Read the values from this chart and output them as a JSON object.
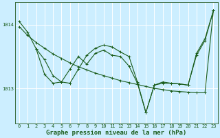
{
  "title": "Graphe pression niveau de la mer (hPa)",
  "bg_color": "#cceeff",
  "grid_color": "#ffffff",
  "line_color": "#1a5c1a",
  "xlim": [
    -0.5,
    23.5
  ],
  "ylim": [
    1012.45,
    1014.35
  ],
  "yticks": [
    1013,
    1014
  ],
  "xticks": [
    0,
    1,
    2,
    3,
    4,
    5,
    6,
    7,
    8,
    9,
    10,
    11,
    12,
    13,
    14,
    15,
    16,
    17,
    18,
    19,
    20,
    21,
    22,
    23
  ],
  "s1x": [
    0,
    1,
    2,
    3,
    4,
    5,
    6,
    7,
    8,
    9,
    10,
    11,
    12,
    13,
    14,
    15,
    16,
    17,
    18,
    19,
    20,
    21,
    22,
    23
  ],
  "s1y": [
    1013.97,
    1013.83,
    1013.72,
    1013.63,
    1013.54,
    1013.47,
    1013.4,
    1013.34,
    1013.29,
    1013.24,
    1013.2,
    1013.16,
    1013.12,
    1013.09,
    1013.06,
    1013.03,
    1013.0,
    1012.98,
    1012.96,
    1012.95,
    1012.94,
    1012.93,
    1012.93,
    1014.22
  ],
  "s2x": [
    0,
    1,
    2,
    3,
    4,
    5,
    6,
    7,
    8,
    9,
    10,
    11,
    12,
    13,
    14,
    15,
    16,
    17,
    18,
    19,
    20,
    21,
    22,
    23
  ],
  "s2y": [
    1014.05,
    1013.88,
    1013.62,
    1013.45,
    1013.2,
    1013.1,
    1013.08,
    1013.3,
    1013.52,
    1013.63,
    1013.68,
    1013.65,
    1013.57,
    1013.5,
    1013.1,
    1012.62,
    1013.05,
    1013.1,
    1013.08,
    1013.07,
    1013.05,
    1013.55,
    1013.78,
    1014.22
  ],
  "s3x": [
    2,
    3,
    4,
    5,
    6,
    7,
    8,
    9,
    10,
    11,
    12,
    13,
    14,
    15,
    16,
    17,
    18,
    19,
    20,
    21,
    22,
    23
  ],
  "s3y": [
    1013.62,
    1013.22,
    1013.08,
    1013.1,
    1013.3,
    1013.5,
    1013.38,
    1013.55,
    1013.6,
    1013.52,
    1013.5,
    1013.35,
    1013.08,
    1012.62,
    1013.05,
    1013.08,
    1013.08,
    1013.07,
    1013.05,
    1013.52,
    1013.75,
    1014.22
  ],
  "title_color": "#1a5c1a",
  "title_fontsize": 6.5,
  "tick_fontsize": 5.0,
  "tick_color": "#1a5c1a",
  "axis_color": "#3a6a3a",
  "lw": 0.8,
  "markersize": 2.5,
  "markeredgewidth": 0.7
}
